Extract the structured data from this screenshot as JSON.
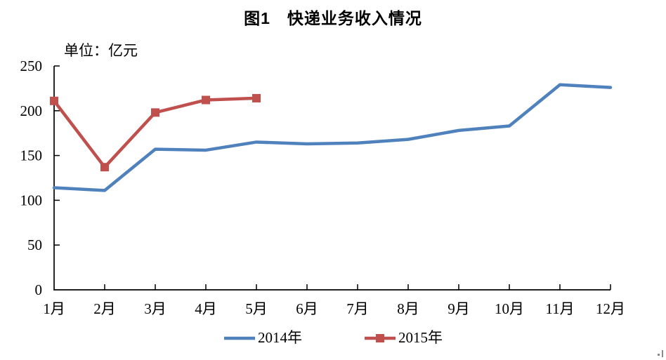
{
  "figure": {
    "title": "图1　快递业务收入情况",
    "unit_label": "单位：亿元"
  },
  "chart_data": {
    "type": "line",
    "title": "图1　快递业务收入情况",
    "unit": "亿元",
    "categories": [
      "1月",
      "2月",
      "3月",
      "4月",
      "5月",
      "6月",
      "7月",
      "8月",
      "9月",
      "10月",
      "11月",
      "12月"
    ],
    "series": [
      {
        "name": "2014年",
        "color": "#4F81BD",
        "marker": "none",
        "values": [
          114,
          111,
          157,
          156,
          165,
          163,
          164,
          168,
          178,
          183,
          229,
          226
        ]
      },
      {
        "name": "2015年",
        "color": "#C0504D",
        "marker": "square",
        "values": [
          211,
          137,
          198,
          212,
          214
        ]
      }
    ],
    "xlabel": "",
    "ylabel": "",
    "ylim": [
      0,
      250
    ],
    "yticks": [
      0,
      50,
      100,
      150,
      200,
      250
    ],
    "grid": false,
    "legend_position": "bottom"
  }
}
